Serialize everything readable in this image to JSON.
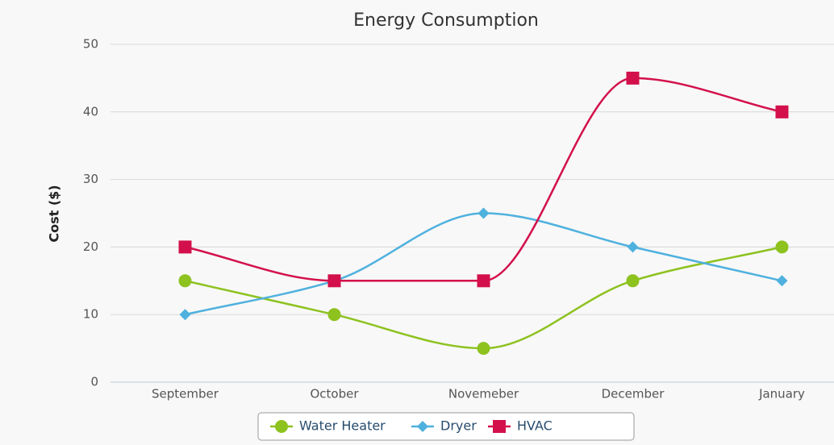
{
  "chart_data": {
    "type": "line",
    "title": "Energy Consumption",
    "y_label": "Cost ($)",
    "categories": [
      "September",
      "October",
      "Novemeber",
      "December",
      "January"
    ],
    "series": [
      {
        "name": "Water Heater",
        "color": "#8dc21f",
        "marker": "circle",
        "values": [
          15,
          10,
          5,
          15,
          20
        ]
      },
      {
        "name": "Dryer",
        "color": "#4fb1de",
        "marker": "diamond",
        "values": [
          10,
          15,
          25,
          20,
          15
        ]
      },
      {
        "name": "HVAC",
        "color": "#d3104b",
        "marker": "square",
        "values": [
          20,
          15,
          15,
          45,
          40
        ]
      }
    ],
    "ylim": [
      0,
      50
    ],
    "yticks": [
      0,
      10,
      20,
      30,
      40,
      50
    ],
    "grid": true,
    "smooth": true,
    "legend": "bottom"
  }
}
